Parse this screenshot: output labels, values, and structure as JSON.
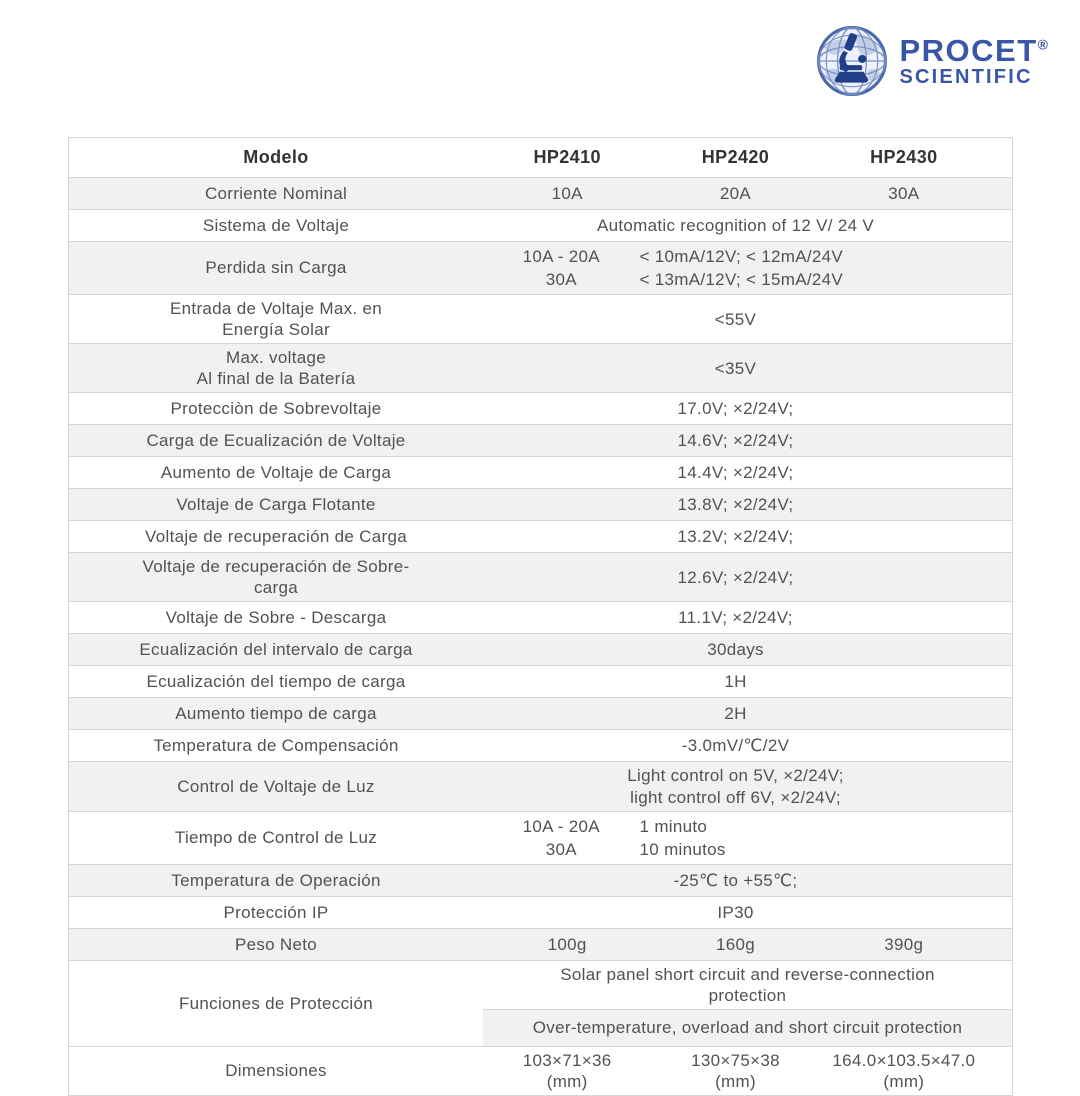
{
  "brand": {
    "name": "PROCET",
    "reg_mark": "®",
    "subtitle": "SCIENTIFIC",
    "color": "#3a57a7"
  },
  "colors": {
    "row_shade": "#f1f1f1",
    "border": "#d6d6d6",
    "text": "#525252",
    "header_text": "#333333"
  },
  "table": {
    "header": {
      "label": "Modelo",
      "models": [
        "HP2410",
        "HP2420",
        "HP2430"
      ]
    },
    "rows": [
      {
        "type": "cols",
        "shade": true,
        "label": [
          "Corriente Nominal"
        ],
        "values": [
          "10A",
          "20A",
          "30A"
        ]
      },
      {
        "type": "span",
        "shade": false,
        "label": [
          "Sistema de Voltaje"
        ],
        "value": [
          "Automatic recognition of 12 V/ 24 V"
        ]
      },
      {
        "type": "pair",
        "shade": true,
        "label": [
          "Perdida sin Carga"
        ],
        "lines": [
          [
            "10A - 20A",
            "< 10mA/12V;  < 12mA/24V"
          ],
          [
            "30A",
            "< 13mA/12V;  < 15mA/24V"
          ]
        ]
      },
      {
        "type": "span",
        "shade": false,
        "label": [
          "Entrada de Voltaje Max. en",
          "Energía Solar"
        ],
        "value": [
          "<55V"
        ]
      },
      {
        "type": "span",
        "shade": true,
        "label": [
          "Max. voltage",
          "Al final de la Batería"
        ],
        "value": [
          "<35V"
        ]
      },
      {
        "type": "span",
        "shade": false,
        "label": [
          "Protecciòn de Sobrevoltaje"
        ],
        "value": [
          "17.0V;  ×2/24V;"
        ]
      },
      {
        "type": "span",
        "shade": true,
        "label": [
          "Carga de Ecualización de Voltaje"
        ],
        "value": [
          "14.6V;  ×2/24V;"
        ]
      },
      {
        "type": "span",
        "shade": false,
        "label": [
          "Aumento de Voltaje de Carga"
        ],
        "value": [
          "14.4V;  ×2/24V;"
        ]
      },
      {
        "type": "span",
        "shade": true,
        "label": [
          "Voltaje de Carga Flotante"
        ],
        "value": [
          "13.8V;  ×2/24V;"
        ]
      },
      {
        "type": "span",
        "shade": false,
        "label": [
          "Voltaje de recuperación de Carga"
        ],
        "value": [
          "13.2V;  ×2/24V;"
        ]
      },
      {
        "type": "span",
        "shade": true,
        "label": [
          "Voltaje de recuperación de Sobre-",
          "carga"
        ],
        "value": [
          "12.6V;  ×2/24V;"
        ]
      },
      {
        "type": "span",
        "shade": false,
        "label": [
          "Voltaje de Sobre - Descarga"
        ],
        "value": [
          "11.1V;  ×2/24V;"
        ]
      },
      {
        "type": "span",
        "shade": true,
        "label": [
          "Ecualización del intervalo de carga"
        ],
        "value": [
          "30days"
        ]
      },
      {
        "type": "span",
        "shade": false,
        "label": [
          "Ecualización del tiempo de carga"
        ],
        "value": [
          "1H"
        ]
      },
      {
        "type": "span",
        "shade": true,
        "label": [
          "Aumento tiempo de carga"
        ],
        "value": [
          "2H"
        ]
      },
      {
        "type": "span",
        "shade": false,
        "label": [
          "Temperatura de Compensación"
        ],
        "value": [
          "-3.0mV/℃/2V"
        ]
      },
      {
        "type": "span",
        "shade": true,
        "label": [
          "Control de Voltaje de Luz"
        ],
        "value": [
          "Light control on 5V, ×2/24V;",
          "light control off 6V, ×2/24V;"
        ]
      },
      {
        "type": "pair",
        "shade": false,
        "label": [
          "Tiempo de Control de Luz"
        ],
        "lines": [
          [
            "10A - 20A",
            "1 minuto"
          ],
          [
            "30A",
            "10 minutos"
          ]
        ]
      },
      {
        "type": "span",
        "shade": true,
        "label": [
          "Temperatura de Operación"
        ],
        "value": [
          "-25℃ to +55℃;"
        ]
      },
      {
        "type": "span",
        "shade": false,
        "label": [
          "Protección IP"
        ],
        "value": [
          "IP30"
        ]
      },
      {
        "type": "cols",
        "shade": true,
        "label": [
          "Peso Neto"
        ],
        "values": [
          "100g",
          "160g",
          "390g"
        ]
      },
      {
        "type": "stack",
        "shade": false,
        "label": [
          "Funciones de Protección"
        ],
        "cells": [
          {
            "shade": false,
            "text": "Solar panel short circuit and reverse-connection protection"
          },
          {
            "shade": true,
            "text": "Over-temperature, overload and short circuit protection"
          }
        ]
      },
      {
        "type": "cols2",
        "shade": false,
        "label": [
          "Dimensiones"
        ],
        "values": [
          [
            "103×71×36",
            "(mm)"
          ],
          [
            "130×75×38",
            "(mm)"
          ],
          [
            "164.0×103.5×47.0",
            "(mm)"
          ]
        ]
      }
    ]
  }
}
